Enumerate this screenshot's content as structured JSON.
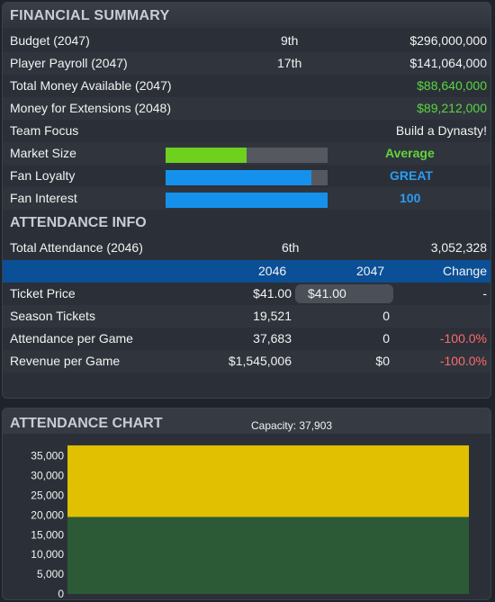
{
  "financial": {
    "title": "FINANCIAL SUMMARY",
    "rows": [
      {
        "label": "Budget (2047)",
        "rank": "9th",
        "value": "$296,000,000"
      },
      {
        "label": "Player Payroll (2047)",
        "rank": "17th",
        "value": "$141,064,000"
      },
      {
        "label": "Total Money Available (2047)",
        "value": "$88,640,000"
      },
      {
        "label": "Money for Extensions (2048)",
        "value": "$89,212,000"
      },
      {
        "label": "Team Focus",
        "value": "Build a Dynasty!"
      }
    ],
    "meters": [
      {
        "label": "Market Size",
        "value_text": "Average",
        "level": 0.5,
        "color": "#6fd11e",
        "text_color": "#63d43c"
      },
      {
        "label": "Fan Loyalty",
        "value_text": "GREAT",
        "level": 0.9,
        "color": "#1591ec",
        "text_color": "#2a9df4"
      },
      {
        "label": "Fan Interest",
        "value_text": "100",
        "level": 1.0,
        "color": "#1591ec",
        "text_color": "#2a9df4"
      }
    ]
  },
  "attendance": {
    "title": "ATTENDANCE INFO",
    "total_label": "Total Attendance (2046)",
    "total_rank": "6th",
    "total_value": "3,052,328",
    "columns": [
      "2046",
      "2047",
      "Change"
    ],
    "rows": [
      {
        "label": "Ticket Price",
        "y2046": "$41.00",
        "y2047": "$41.00",
        "change": "-"
      },
      {
        "label": "Season Tickets",
        "y2046": "19,521",
        "y2047": "0",
        "change": ""
      },
      {
        "label": "Attendance per Game",
        "y2046": "37,683",
        "y2047": "0",
        "change": "-100.0%"
      },
      {
        "label": "Revenue per Game",
        "y2046": "$1,545,006",
        "y2047": "$0",
        "change": "-100.0%"
      }
    ]
  },
  "chart_panel": {
    "title": "ATTENDANCE CHART",
    "capacity_label": "Capacity: 37,903"
  },
  "chart_data": {
    "type": "area",
    "title": "",
    "xlabel": "",
    "ylabel": "",
    "ylim": [
      0,
      37903
    ],
    "yticks": [
      0,
      5000,
      10000,
      15000,
      20000,
      25000,
      30000,
      35000
    ],
    "ytick_labels": [
      "0",
      "5,000",
      "10,000",
      "15,000",
      "20,000",
      "25,000",
      "30,000",
      "35,000"
    ],
    "series": [
      {
        "values": [
          19521
        ],
        "color": "#2d5a36"
      },
      {
        "values": [
          37683
        ],
        "color": "#e0c000"
      }
    ],
    "grid": false
  }
}
